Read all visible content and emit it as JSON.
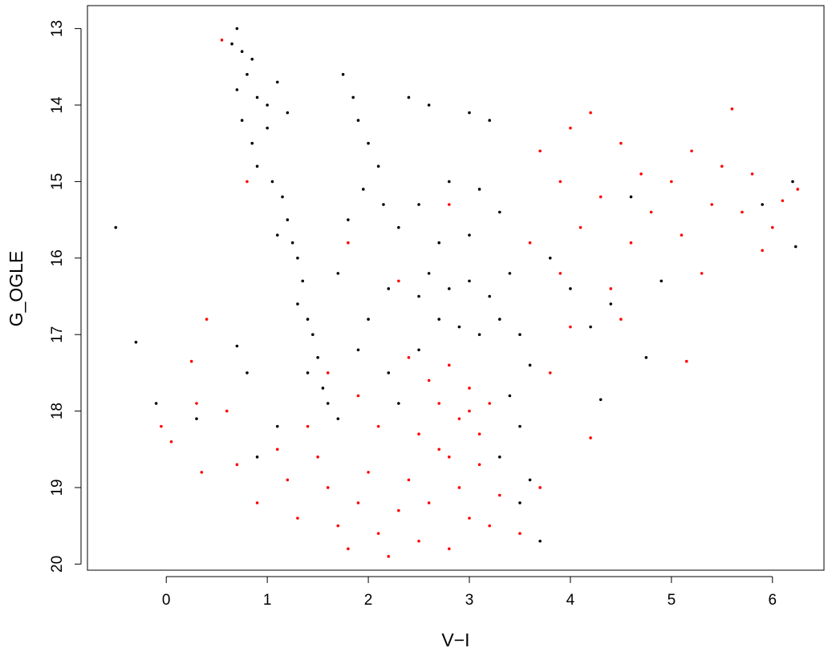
{
  "chart_data": {
    "type": "scatter",
    "x_label": "V−I",
    "y_label": "G_OGLE",
    "xlim": [
      -0.78,
      6.51
    ],
    "ylim": [
      20.08,
      12.7
    ],
    "y_inverted": true,
    "xticks": [
      0,
      1,
      2,
      3,
      4,
      5,
      6
    ],
    "yticks": [
      13,
      14,
      15,
      16,
      17,
      18,
      19,
      20
    ],
    "series": [
      {
        "color": "#000000",
        "x": [
          0.7,
          0.65,
          0.75,
          0.85,
          0.8,
          0.7,
          0.9,
          1.0,
          1.1,
          0.75,
          0.85,
          1.0,
          1.2,
          0.9,
          1.05,
          1.15,
          1.2,
          1.1,
          1.25,
          1.3,
          1.35,
          1.3,
          1.4,
          1.45,
          1.5,
          1.4,
          1.55,
          1.6,
          1.7,
          1.75,
          1.85,
          1.9,
          2.0,
          2.1,
          1.95,
          2.15,
          1.8,
          2.3,
          2.4,
          2.6,
          3.0,
          3.2,
          2.8,
          3.1,
          2.5,
          3.3,
          2.7,
          3.0,
          1.7,
          2.2,
          2.0,
          2.5,
          2.6,
          2.8,
          3.0,
          3.2,
          3.4,
          2.7,
          2.9,
          3.1,
          3.3,
          3.5,
          2.5,
          3.6,
          3.4,
          3.5,
          3.3,
          3.6,
          3.8,
          4.0,
          4.2,
          4.4,
          4.6,
          4.9,
          4.75,
          4.3,
          6.2,
          6.23,
          5.9,
          -0.5,
          -0.3,
          -0.1,
          0.3,
          0.7,
          0.8,
          0.9,
          1.1,
          2.2,
          1.9,
          2.3,
          3.5,
          3.7
        ],
        "values": [
          13.0,
          13.2,
          13.3,
          13.4,
          13.6,
          13.8,
          13.9,
          14.0,
          13.7,
          14.2,
          14.5,
          14.3,
          14.1,
          14.8,
          15.0,
          15.2,
          15.5,
          15.7,
          15.8,
          16.0,
          16.3,
          16.6,
          16.8,
          17.0,
          17.3,
          17.5,
          17.7,
          17.9,
          18.1,
          13.6,
          13.9,
          14.2,
          14.5,
          14.8,
          15.1,
          15.3,
          15.5,
          15.6,
          13.9,
          14.0,
          14.1,
          14.2,
          15.0,
          15.1,
          15.3,
          15.4,
          15.8,
          15.7,
          16.2,
          16.4,
          16.8,
          16.5,
          16.2,
          16.4,
          16.3,
          16.5,
          16.2,
          16.8,
          16.9,
          17.0,
          16.8,
          17.0,
          17.2,
          17.4,
          17.8,
          18.2,
          18.6,
          18.9,
          16.0,
          16.4,
          16.9,
          16.6,
          15.2,
          16.3,
          17.3,
          17.85,
          15.0,
          15.85,
          15.3,
          15.6,
          17.1,
          17.9,
          18.1,
          17.15,
          17.5,
          18.6,
          18.2,
          17.5,
          17.2,
          17.9,
          19.2,
          19.7
        ]
      },
      {
        "color": "#ff0000",
        "x": [
          0.55,
          0.8,
          0.25,
          0.3,
          0.4,
          -0.05,
          0.05,
          0.35,
          0.6,
          0.7,
          0.9,
          1.1,
          1.2,
          1.3,
          1.4,
          1.5,
          1.6,
          1.7,
          1.8,
          1.9,
          2.0,
          2.1,
          2.2,
          2.3,
          2.4,
          2.5,
          2.6,
          2.7,
          2.8,
          2.9,
          3.0,
          3.1,
          3.2,
          3.3,
          3.5,
          3.7,
          2.6,
          2.7,
          2.8,
          2.9,
          3.0,
          3.1,
          3.2,
          2.5,
          2.8,
          3.0,
          2.4,
          1.9,
          2.1,
          1.6,
          2.3,
          2.8,
          1.8,
          3.7,
          3.9,
          4.0,
          4.2,
          4.1,
          4.3,
          4.5,
          4.6,
          4.7,
          4.8,
          5.0,
          5.1,
          5.2,
          5.3,
          5.4,
          5.5,
          5.6,
          5.7,
          5.8,
          5.9,
          6.0,
          6.1,
          6.25,
          4.4,
          4.0,
          3.8,
          4.2,
          4.5,
          5.15,
          3.9,
          3.6
        ],
        "values": [
          13.15,
          15.0,
          17.35,
          17.9,
          16.8,
          18.2,
          18.4,
          18.8,
          18.0,
          18.7,
          19.2,
          18.5,
          18.9,
          19.4,
          18.2,
          18.6,
          19.0,
          19.5,
          19.8,
          19.2,
          18.8,
          19.6,
          19.9,
          19.3,
          18.9,
          19.7,
          19.2,
          18.5,
          19.8,
          19.0,
          19.4,
          18.7,
          19.5,
          19.1,
          19.6,
          19.0,
          17.6,
          17.9,
          17.4,
          18.1,
          17.7,
          18.3,
          17.9,
          18.3,
          18.6,
          18.0,
          17.3,
          17.8,
          18.2,
          17.5,
          16.3,
          15.3,
          15.8,
          14.6,
          15.0,
          14.3,
          14.1,
          15.6,
          15.2,
          14.5,
          15.8,
          14.9,
          15.4,
          15.0,
          15.7,
          14.6,
          16.2,
          15.3,
          14.8,
          14.05,
          15.4,
          14.9,
          15.9,
          15.6,
          15.25,
          15.1,
          16.4,
          16.9,
          17.5,
          18.35,
          16.8,
          17.35,
          16.2,
          15.8
        ]
      }
    ]
  }
}
